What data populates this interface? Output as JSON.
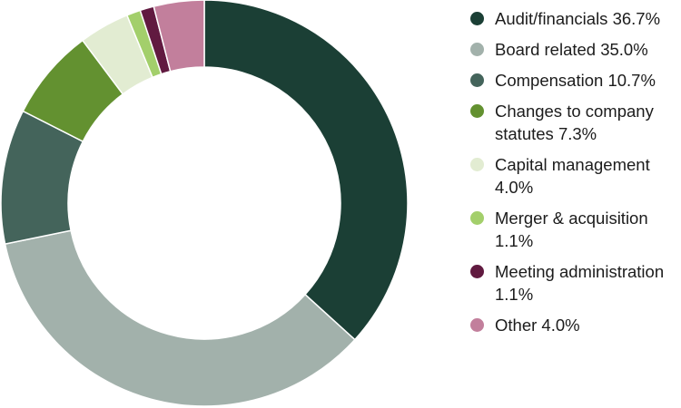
{
  "chart_data": {
    "type": "pie",
    "donut": true,
    "legend_position": "right",
    "start_angle": "top, clockwise",
    "slices": [
      {
        "label": "Audit/financials",
        "value": 36.7,
        "display": "36.7%",
        "color": "#1b3f35"
      },
      {
        "label": "Board related",
        "value": 35.0,
        "display": "35.0%",
        "color": "#a2b1ab"
      },
      {
        "label": "Compensation",
        "value": 10.7,
        "display": "10.7%",
        "color": "#44645b"
      },
      {
        "label": "Changes to company statutes",
        "value": 7.3,
        "display": "7.3%",
        "color": "#639130"
      },
      {
        "label": "Capital management",
        "value": 4.0,
        "display": "4.0%",
        "color": "#e2ecd2"
      },
      {
        "label": "Merger & acquisition",
        "value": 1.1,
        "display": "1.1%",
        "color": "#a3cf6b"
      },
      {
        "label": "Meeting administration",
        "value": 1.1,
        "display": "1.1%",
        "color": "#611a40"
      },
      {
        "label": "Other",
        "value": 4.0,
        "display": "4.0%",
        "color": "#c27f9c"
      }
    ]
  }
}
